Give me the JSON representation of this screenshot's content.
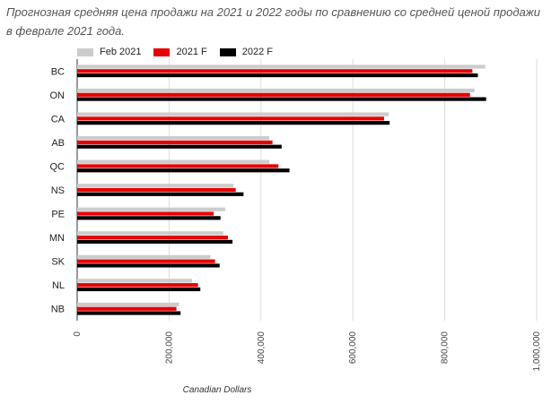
{
  "caption": "Прогнозная средняя цена продажи на 2021 и 2022 годы по сравнению со средней ценой продажи в феврале 2021 года.",
  "chart_data": {
    "type": "bar",
    "orientation": "horizontal",
    "categories": [
      "BC",
      "ON",
      "CA",
      "AB",
      "QC",
      "NS",
      "PE",
      "MN",
      "SK",
      "NL",
      "NB"
    ],
    "series": [
      {
        "name": "Feb 2021",
        "color": "#cccccc",
        "values": [
          888000,
          865000,
          678000,
          418000,
          418000,
          340000,
          322000,
          318000,
          290000,
          250000,
          222000
        ]
      },
      {
        "name": "2021 F",
        "color": "#e60000",
        "values": [
          860000,
          855000,
          668000,
          425000,
          438000,
          345000,
          297000,
          328000,
          300000,
          263000,
          216000
        ]
      },
      {
        "name": "2022 F",
        "color": "#000000",
        "values": [
          872000,
          890000,
          680000,
          445000,
          462000,
          362000,
          312000,
          338000,
          310000,
          268000,
          225000
        ]
      }
    ],
    "xlabel": "Canadian Dollars",
    "ylabel": "",
    "xlim": [
      0,
      1000000
    ],
    "xticks": [
      0,
      200000,
      400000,
      600000,
      800000,
      1000000
    ],
    "xtick_labels": [
      "0",
      "200,000",
      "400,000",
      "600,000",
      "800,000",
      "1,000,000"
    ],
    "grid": "vertical",
    "legend_position": "top-left"
  }
}
